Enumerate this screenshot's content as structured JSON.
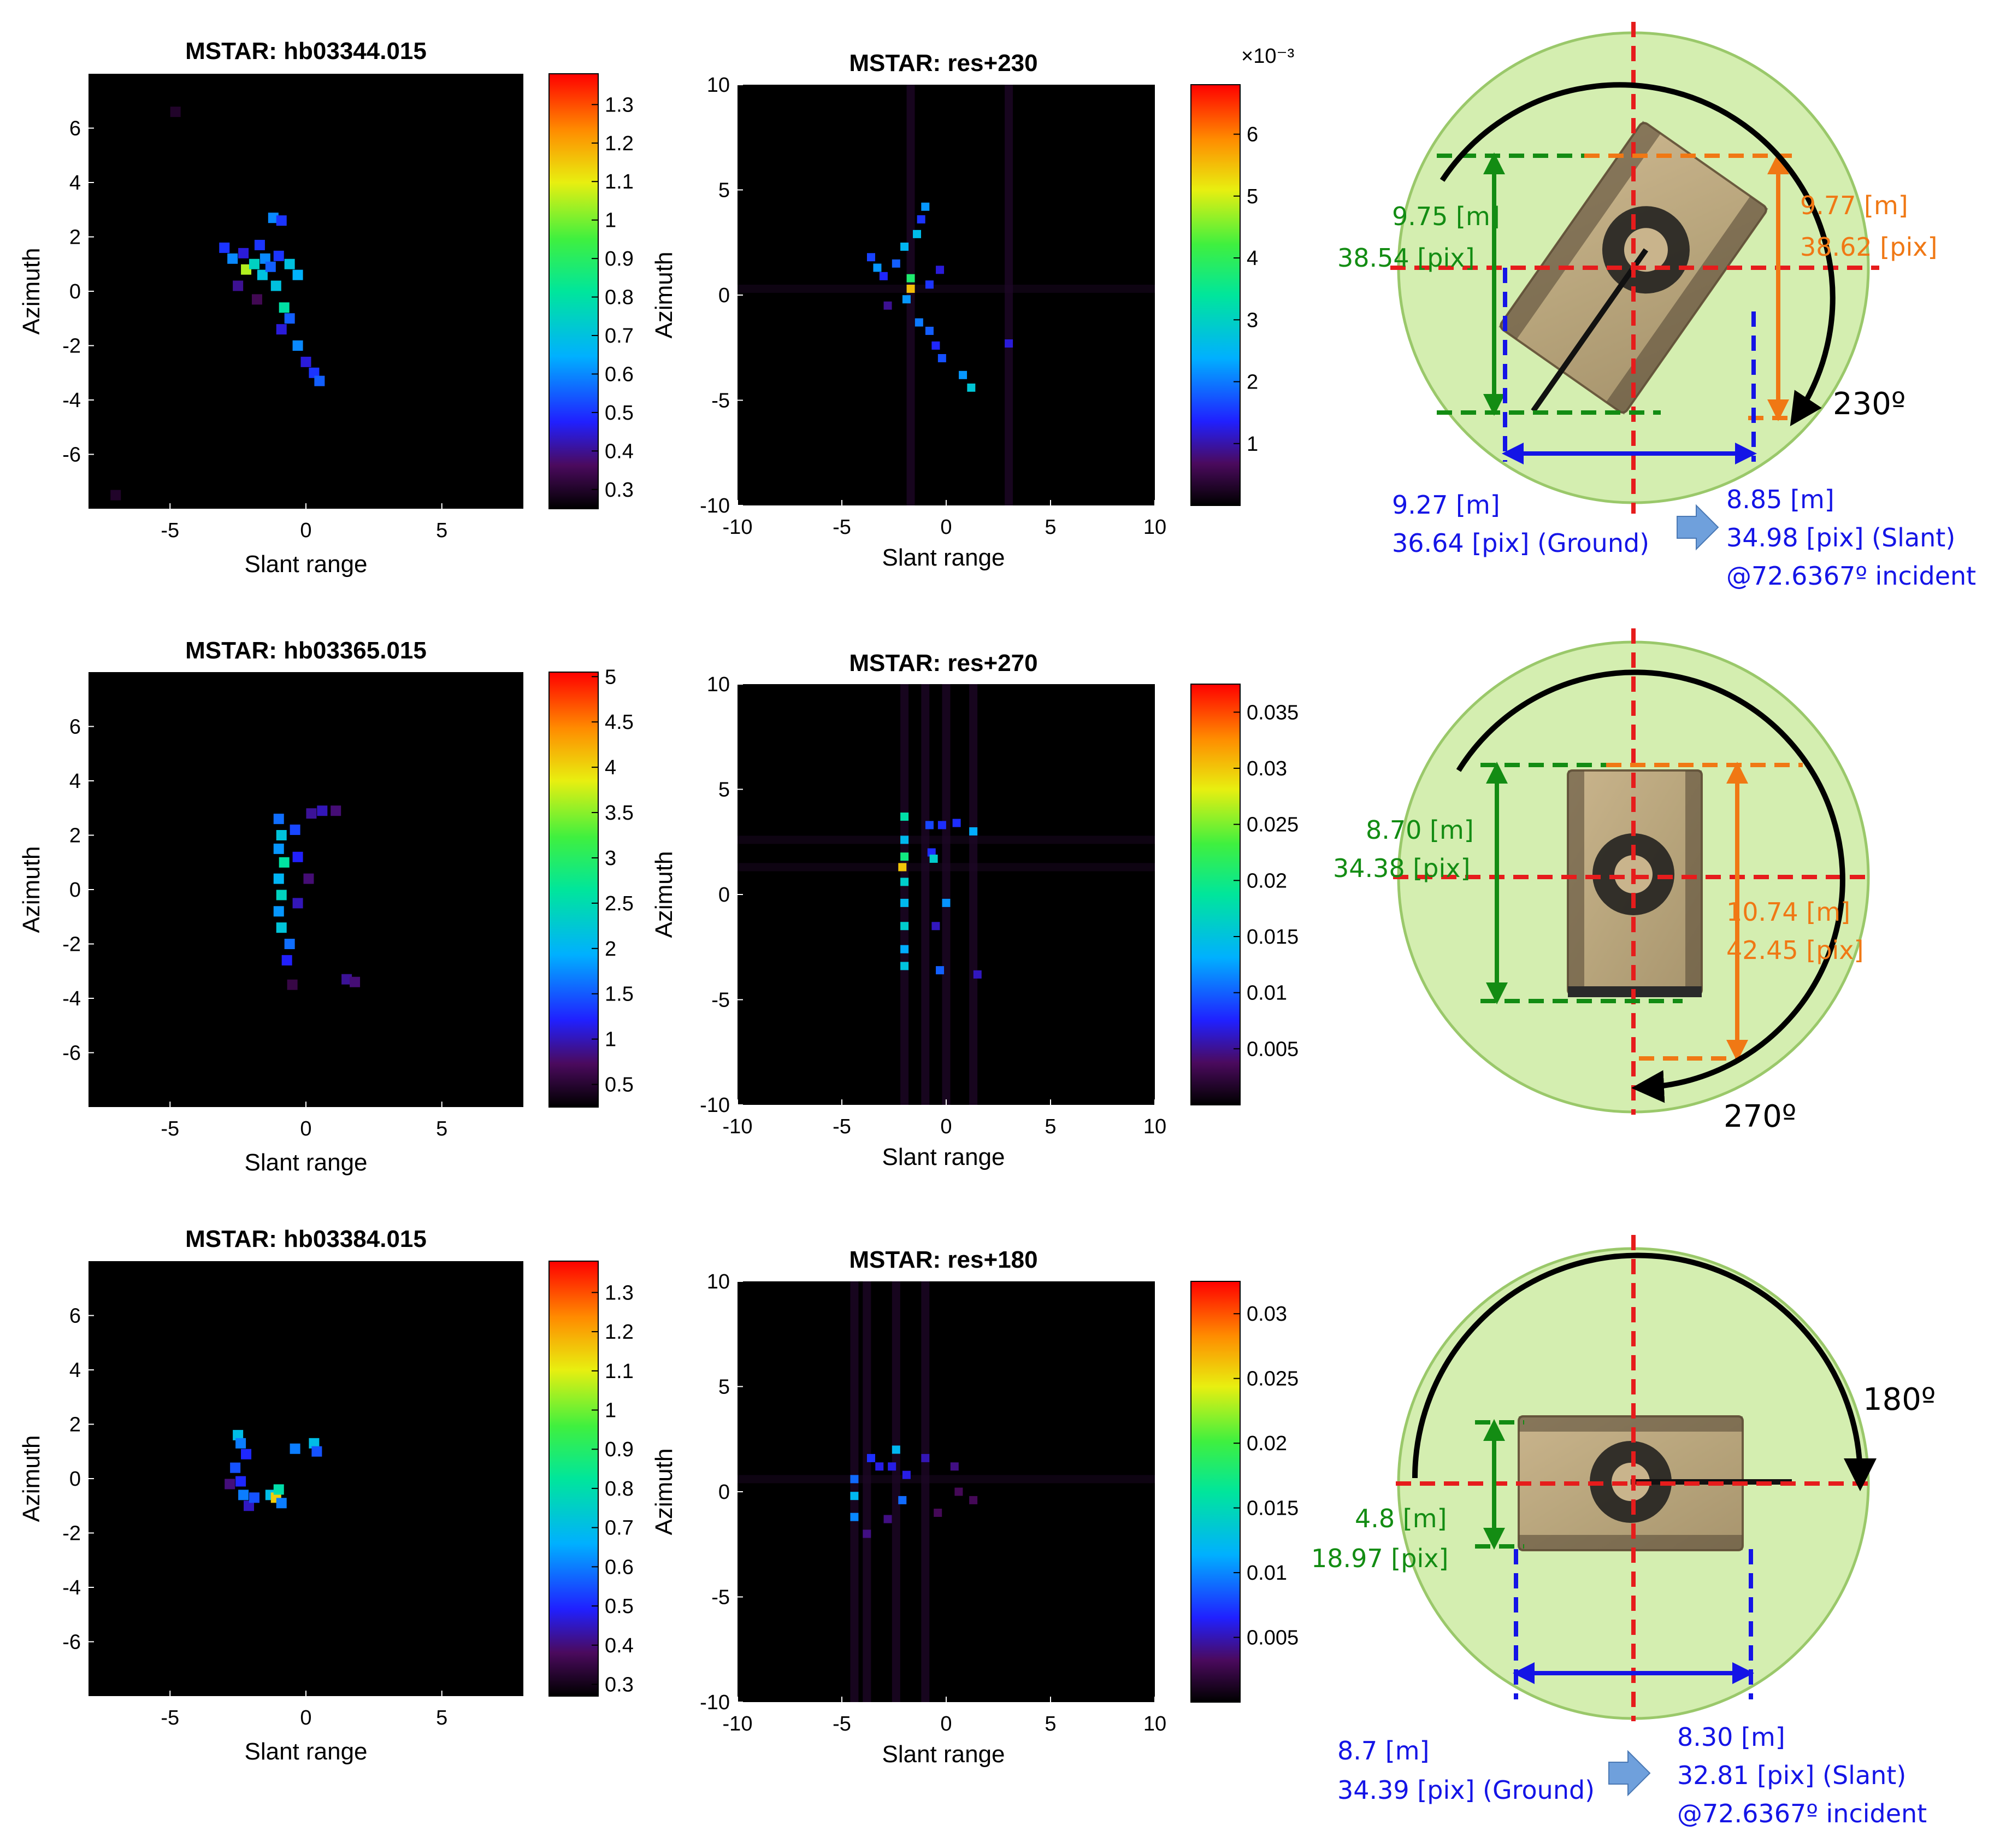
{
  "chart_data": [
    {
      "type": "heatmap",
      "title": "MSTAR: hb03344.015",
      "xlabel": "Slant range",
      "ylabel": "Azimuth",
      "xlim": [
        -8,
        8
      ],
      "ylim": [
        -8,
        8
      ],
      "xticks": [
        -5,
        0,
        5
      ],
      "yticks": [
        -6,
        -4,
        -2,
        0,
        2,
        4,
        6
      ],
      "colorbar": {
        "min": 0.25,
        "max": 1.38,
        "ticks": [
          0.3,
          0.4,
          0.5,
          0.6,
          0.7,
          0.8,
          0.9,
          1,
          1.1,
          1.2,
          1.3
        ],
        "labels": [
          "0.3",
          "0.4",
          "0.5",
          "0.6",
          "0.7",
          "0.8",
          "0.9",
          "1",
          "1.1",
          "1.2",
          "1.3"
        ],
        "exponent": ""
      },
      "points": [
        [
          -3,
          1.6,
          0.5
        ],
        [
          -2.7,
          1.2,
          0.6
        ],
        [
          -2.3,
          1.4,
          0.45
        ],
        [
          -2.2,
          0.8,
          1.05
        ],
        [
          -1.9,
          1.0,
          0.75
        ],
        [
          -1.7,
          1.7,
          0.5
        ],
        [
          -1.5,
          1.2,
          0.6
        ],
        [
          -1.6,
          0.6,
          0.7
        ],
        [
          -1.3,
          0.9,
          0.55
        ],
        [
          -1.1,
          0.2,
          0.7
        ],
        [
          -1.2,
          2.7,
          0.6
        ],
        [
          -0.9,
          2.6,
          0.5
        ],
        [
          -1.0,
          1.3,
          0.5
        ],
        [
          -0.6,
          1.0,
          0.7
        ],
        [
          -0.3,
          0.6,
          0.65
        ],
        [
          -0.8,
          -0.6,
          0.8
        ],
        [
          -0.6,
          -1.0,
          0.55
        ],
        [
          -0.9,
          -1.4,
          0.45
        ],
        [
          -0.3,
          -2.0,
          0.6
        ],
        [
          0.0,
          -2.6,
          0.45
        ],
        [
          0.3,
          -3.0,
          0.5
        ],
        [
          0.5,
          -3.3,
          0.55
        ],
        [
          -2.5,
          0.2,
          0.4
        ],
        [
          -1.8,
          -0.3,
          0.35
        ],
        [
          -4.8,
          6.6,
          0.3
        ],
        [
          -7.0,
          -7.5,
          0.3
        ]
      ]
    },
    {
      "type": "heatmap",
      "title": "MSTAR: res+230",
      "xlabel": "Slant range",
      "ylabel": "Azimuth",
      "xlim": [
        -10,
        10
      ],
      "ylim": [
        -10,
        10
      ],
      "xticks": [
        -10,
        -5,
        0,
        5,
        10
      ],
      "yticks": [
        -10,
        -5,
        0,
        5,
        10
      ],
      "colorbar": {
        "min": 0,
        "max": 6.8,
        "ticks": [
          1,
          2,
          3,
          4,
          5,
          6
        ],
        "labels": [
          "1",
          "2",
          "3",
          "4",
          "5",
          "6"
        ],
        "exponent": "×10⁻³"
      },
      "points": [
        [
          -3.6,
          1.8,
          1.6
        ],
        [
          -3.3,
          1.3,
          2.2
        ],
        [
          -3.0,
          0.9,
          1.4
        ],
        [
          -2.4,
          1.5,
          1.8
        ],
        [
          -2.0,
          2.3,
          2.5
        ],
        [
          -1.7,
          0.8,
          3.8
        ],
        [
          -1.7,
          0.3,
          5.5
        ],
        [
          -1.9,
          -0.2,
          2.2
        ],
        [
          -1.4,
          2.9,
          2.6
        ],
        [
          -1.0,
          4.2,
          2.2
        ],
        [
          -1.2,
          3.6,
          1.5
        ],
        [
          -1.3,
          -1.3,
          2.0
        ],
        [
          -0.8,
          -1.7,
          1.8
        ],
        [
          -0.5,
          -2.4,
          1.4
        ],
        [
          -0.2,
          -3.0,
          1.7
        ],
        [
          0.8,
          -3.8,
          2.2
        ],
        [
          1.2,
          -4.4,
          2.8
        ],
        [
          -0.8,
          0.5,
          1.5
        ],
        [
          3.0,
          -2.3,
          1.2
        ],
        [
          -2.8,
          -0.5,
          0.9
        ],
        [
          -0.3,
          1.2,
          1.2
        ]
      ],
      "streaks_x": [
        -1.7,
        3.0
      ],
      "streaks_y": [
        0.3
      ]
    },
    {
      "type": "heatmap",
      "title": "MSTAR: hb03365.015",
      "xlabel": "Slant range",
      "ylabel": "Azimuth",
      "xlim": [
        -8,
        8
      ],
      "ylim": [
        -8,
        8
      ],
      "xticks": [
        -5,
        0,
        5
      ],
      "yticks": [
        -6,
        -4,
        -2,
        0,
        2,
        4,
        6
      ],
      "colorbar": {
        "min": 0.25,
        "max": 5.05,
        "ticks": [
          0.5,
          1,
          1.5,
          2,
          2.5,
          3,
          3.5,
          4,
          4.5,
          5
        ],
        "labels": [
          "0.5",
          "1",
          "1.5",
          "2",
          "2.5",
          "3",
          "3.5",
          "4",
          "4.5",
          "5"
        ],
        "exponent": ""
      },
      "points": [
        [
          -1.0,
          2.6,
          1.6
        ],
        [
          -0.9,
          2.0,
          2.2
        ],
        [
          -1.0,
          1.5,
          1.8
        ],
        [
          -0.8,
          1.0,
          2.6
        ],
        [
          -1.0,
          0.4,
          2.0
        ],
        [
          -0.9,
          -0.2,
          2.4
        ],
        [
          -1.0,
          -0.8,
          1.8
        ],
        [
          -0.9,
          -1.4,
          2.2
        ],
        [
          -0.6,
          -2.0,
          1.6
        ],
        [
          -0.7,
          -2.6,
          1.2
        ],
        [
          -0.4,
          2.2,
          1.4
        ],
        [
          -0.3,
          1.2,
          1.2
        ],
        [
          -0.3,
          -0.5,
          1.0
        ],
        [
          0.2,
          2.8,
          0.9
        ],
        [
          0.6,
          2.9,
          1.0
        ],
        [
          1.1,
          2.9,
          0.8
        ],
        [
          0.1,
          0.4,
          0.8
        ],
        [
          1.5,
          -3.3,
          0.9
        ],
        [
          1.8,
          -3.4,
          0.8
        ],
        [
          -0.5,
          -3.5,
          0.6
        ]
      ]
    },
    {
      "type": "heatmap",
      "title": "MSTAR: res+270",
      "xlabel": "Slant range",
      "ylabel": "Azimuth",
      "xlim": [
        -10,
        10
      ],
      "ylim": [
        -10,
        10
      ],
      "xticks": [
        -10,
        -5,
        0,
        5,
        10
      ],
      "yticks": [
        -10,
        -5,
        0,
        5,
        10
      ],
      "colorbar": {
        "min": 0,
        "max": 0.0375,
        "ticks": [
          0.005,
          0.01,
          0.015,
          0.02,
          0.025,
          0.03,
          0.035
        ],
        "labels": [
          "0.005",
          "0.01",
          "0.015",
          "0.02",
          "0.025",
          "0.03",
          "0.035"
        ],
        "exponent": ""
      },
      "points": [
        [
          -2.0,
          3.7,
          0.018
        ],
        [
          -2.0,
          2.6,
          0.014
        ],
        [
          -2.0,
          1.8,
          0.02
        ],
        [
          -2.1,
          1.3,
          0.03
        ],
        [
          -2.0,
          0.6,
          0.016
        ],
        [
          -2.0,
          -0.4,
          0.014
        ],
        [
          -2.0,
          -1.5,
          0.016
        ],
        [
          -2.0,
          -2.6,
          0.013
        ],
        [
          -2.0,
          -3.4,
          0.015
        ],
        [
          -0.8,
          3.3,
          0.009
        ],
        [
          -0.2,
          3.3,
          0.008
        ],
        [
          0.5,
          3.4,
          0.008
        ],
        [
          1.3,
          3.0,
          0.013
        ],
        [
          -0.7,
          2.0,
          0.008
        ],
        [
          -0.6,
          1.7,
          0.016
        ],
        [
          0.0,
          -0.4,
          0.012
        ],
        [
          -0.3,
          -3.6,
          0.01
        ],
        [
          1.5,
          -3.8,
          0.006
        ],
        [
          -0.5,
          -1.5,
          0.006
        ]
      ],
      "streaks_x": [
        -2.0,
        -1.0,
        0.0,
        1.3
      ],
      "streaks_y": [
        2.6,
        1.3
      ]
    },
    {
      "type": "heatmap",
      "title": "MSTAR: hb03384.015",
      "xlabel": "Slant range",
      "ylabel": "Azimuth",
      "xlim": [
        -8,
        8
      ],
      "ylim": [
        -8,
        8
      ],
      "xticks": [
        -5,
        0,
        5
      ],
      "yticks": [
        -6,
        -4,
        -2,
        0,
        2,
        4,
        6
      ],
      "colorbar": {
        "min": 0.27,
        "max": 1.38,
        "ticks": [
          0.3,
          0.4,
          0.5,
          0.6,
          0.7,
          0.8,
          0.9,
          1,
          1.1,
          1.2,
          1.3
        ],
        "labels": [
          "0.3",
          "0.4",
          "0.5",
          "0.6",
          "0.7",
          "0.8",
          "0.9",
          "1",
          "1.1",
          "1.2",
          "1.3"
        ],
        "exponent": ""
      },
      "points": [
        [
          -2.5,
          1.6,
          0.7
        ],
        [
          -2.4,
          1.3,
          0.6
        ],
        [
          -2.2,
          0.9,
          0.5
        ],
        [
          -2.6,
          0.4,
          0.55
        ],
        [
          -2.4,
          -0.1,
          0.5
        ],
        [
          -2.3,
          -0.6,
          0.6
        ],
        [
          -2.1,
          -1.0,
          0.45
        ],
        [
          -1.9,
          -0.7,
          0.55
        ],
        [
          -1.3,
          -0.6,
          0.7
        ],
        [
          -1.1,
          -0.7,
          1.15
        ],
        [
          -1.0,
          -0.4,
          0.8
        ],
        [
          -0.9,
          -0.9,
          0.6
        ],
        [
          -0.4,
          1.1,
          0.6
        ],
        [
          0.3,
          1.3,
          0.7
        ],
        [
          0.4,
          1.0,
          0.55
        ],
        [
          -2.8,
          -0.2,
          0.4
        ]
      ]
    },
    {
      "type": "heatmap",
      "title": "MSTAR: res+180",
      "xlabel": "Slant range",
      "ylabel": "Azimuth",
      "xlim": [
        -10,
        10
      ],
      "ylim": [
        -10,
        10
      ],
      "xticks": [
        -10,
        -5,
        0,
        5,
        10
      ],
      "yticks": [
        -10,
        -5,
        0,
        5,
        10
      ],
      "colorbar": {
        "min": 0,
        "max": 0.0325,
        "ticks": [
          0.005,
          0.01,
          0.015,
          0.02,
          0.025,
          0.03
        ],
        "labels": [
          "0.005",
          "0.01",
          "0.015",
          "0.02",
          "0.025",
          "0.03"
        ],
        "exponent": ""
      },
      "points": [
        [
          -4.4,
          0.6,
          0.009
        ],
        [
          -4.4,
          -0.2,
          0.012
        ],
        [
          -4.4,
          -1.2,
          0.01
        ],
        [
          -3.6,
          1.6,
          0.007
        ],
        [
          -3.2,
          1.2,
          0.006
        ],
        [
          -2.4,
          2.0,
          0.012
        ],
        [
          -2.6,
          1.2,
          0.006
        ],
        [
          -1.9,
          0.8,
          0.006
        ],
        [
          -1.0,
          1.6,
          0.005
        ],
        [
          0.4,
          1.2,
          0.004
        ],
        [
          1.3,
          -0.4,
          0.003
        ],
        [
          0.6,
          0.0,
          0.003
        ],
        [
          -3.8,
          -2.0,
          0.004
        ],
        [
          -2.8,
          -1.3,
          0.004
        ],
        [
          -0.4,
          -1.0,
          0.003
        ],
        [
          -2.1,
          -0.4,
          0.009
        ]
      ],
      "streaks_x": [
        -4.4,
        -3.8,
        -2.4,
        -1.0
      ],
      "streaks_y": [
        0.6
      ]
    }
  ],
  "diagrams": [
    {
      "angle_label": "230º",
      "left_meters": "9.75 [m]",
      "left_pixels": "38.54 [pix]",
      "right_meters": "9.77 [m]",
      "right_pixels": "38.62 [pix]",
      "bottom_left_line1": "9.27 [m]",
      "bottom_left_line2": "36.64 [pix] (Ground)",
      "bottom_right_line1": "8.85 [m]",
      "bottom_right_line2": "34.98 [pix] (Slant)",
      "bottom_right_line3": "@72.6367º incident"
    },
    {
      "angle_label": "270º",
      "left_meters": "8.70 [m]",
      "left_pixels": "34.38 [pix]",
      "right_meters": "10.74 [m]",
      "right_pixels": "42.45 [pix]"
    },
    {
      "angle_label": "180º",
      "left_meters": "4.8 [m]",
      "left_pixels": "18.97 [pix]",
      "bottom_left_line1": "8.7 [m]",
      "bottom_left_line2": "34.39 [pix] (Ground)",
      "bottom_right_line1": "8.30 [m]",
      "bottom_right_line2": "32.81 [pix] (Slant)",
      "bottom_right_line3": "@72.6367º incident"
    }
  ],
  "colors": {
    "green": "#138c13",
    "orange": "#f07814",
    "blue": "#1414e6",
    "red": "#e61c1c",
    "disk": "#d4eeb0",
    "disk_edge": "#9ac86a"
  }
}
